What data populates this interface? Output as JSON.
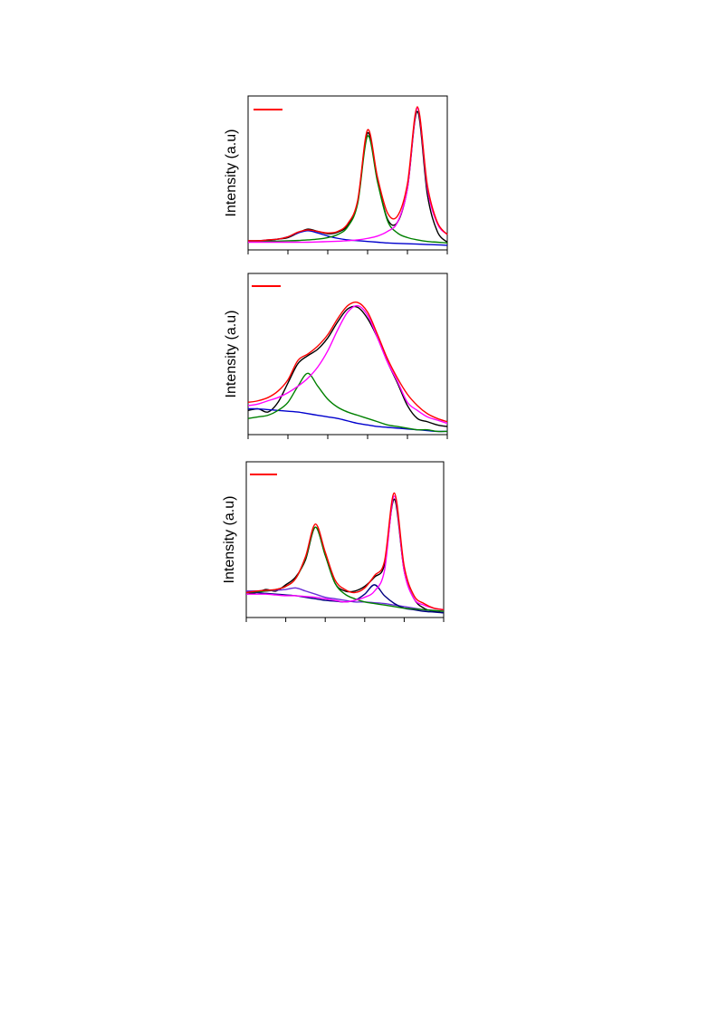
{
  "chart_data": [
    {
      "type": "line",
      "ylabel": "Intensity (a.u)",
      "xlim": [
        0,
        100
      ],
      "ylim": [
        0,
        100
      ],
      "xticks": [
        0,
        20,
        40,
        60,
        80,
        100
      ],
      "x": [
        0,
        5,
        10,
        15,
        20,
        25,
        30,
        35,
        40,
        45,
        50,
        55,
        60,
        65,
        70,
        75,
        80,
        85,
        90,
        95,
        100
      ],
      "series": [
        {
          "color": "#000000",
          "values": [
            5,
            6,
            6,
            7,
            8,
            11,
            13.5,
            12,
            10.5,
            11.5,
            16,
            31,
            76,
            45,
            20,
            18,
            40,
            90,
            36,
            12,
            5
          ]
        },
        {
          "color": "#0000cd",
          "values": [
            6,
            6,
            6.5,
            7,
            8.5,
            11,
            12.5,
            11,
            9,
            7.5,
            6.5,
            6,
            5.5,
            5,
            4.5,
            4.2,
            4,
            3.8,
            3.5,
            3.3,
            3
          ]
        },
        {
          "color": "#008000",
          "values": [
            5.5,
            5.5,
            5.6,
            5.7,
            5.9,
            6.1,
            6.5,
            7,
            8,
            10,
            15,
            30,
            74,
            44,
            19,
            11,
            8,
            6.5,
            5.5,
            5,
            4.5
          ]
        },
        {
          "color": "#ff00ff",
          "values": [
            5,
            5,
            5,
            5,
            5,
            5,
            5,
            5.2,
            5.4,
            5.6,
            6,
            6.5,
            7.5,
            9,
            12,
            18,
            40,
            92,
            40,
            17,
            10
          ]
        },
        {
          "color": "#ff0000",
          "values": [
            6,
            6,
            6.5,
            7,
            8.5,
            11.5,
            13,
            12,
            11,
            12,
            17,
            32,
            78,
            47,
            24,
            22,
            43,
            93,
            42,
            18,
            10
          ]
        }
      ]
    },
    {
      "type": "line",
      "ylabel": "Intensity (a.u)",
      "xlim": [
        0,
        100
      ],
      "ylim": [
        0,
        100
      ],
      "xticks": [
        0,
        20,
        40,
        60,
        80,
        100
      ],
      "x": [
        0,
        5,
        10,
        15,
        20,
        25,
        30,
        35,
        40,
        45,
        50,
        55,
        60,
        65,
        70,
        75,
        80,
        85,
        90,
        95,
        100
      ],
      "series": [
        {
          "color": "#000000",
          "values": [
            15,
            16,
            14,
            20,
            32,
            44,
            49,
            53,
            60,
            70,
            78,
            79,
            72,
            60,
            45,
            32,
            18,
            10,
            8,
            6,
            5
          ]
        },
        {
          "color": "#0000cd",
          "values": [
            16,
            16,
            15.5,
            15,
            14.5,
            14,
            13,
            12,
            11,
            10,
            8.5,
            7,
            6,
            5,
            4.5,
            4,
            3.5,
            3,
            2.5,
            2,
            2
          ]
        },
        {
          "color": "#008000",
          "values": [
            10,
            11,
            12,
            15,
            20,
            30,
            38,
            30,
            22,
            17,
            14,
            12,
            10,
            8,
            6,
            5,
            4,
            3,
            3,
            2,
            2
          ]
        },
        {
          "color": "#ff00ff",
          "values": [
            18,
            19,
            21,
            23,
            26,
            30,
            35,
            42,
            52,
            65,
            76,
            80,
            74,
            60,
            45,
            33,
            20,
            15,
            11,
            9,
            7
          ]
        },
        {
          "color": "#ff0000",
          "values": [
            20,
            21,
            23,
            27,
            34,
            46,
            50,
            55,
            62,
            72,
            80,
            82,
            76,
            62,
            47,
            35,
            25,
            18,
            13,
            10,
            8
          ]
        }
      ]
    },
    {
      "type": "line",
      "ylabel": "Intensity (a.u)",
      "xlim": [
        0,
        100
      ],
      "ylim": [
        0,
        100
      ],
      "xticks": [
        0,
        20,
        40,
        60,
        80,
        100
      ],
      "x": [
        0,
        5,
        10,
        15,
        20,
        25,
        30,
        35,
        40,
        45,
        50,
        55,
        60,
        65,
        70,
        75,
        80,
        85,
        90,
        95,
        100
      ],
      "series": [
        {
          "color": "#000000",
          "values": [
            15,
            16,
            18,
            17,
            21,
            26,
            37,
            58,
            40,
            22,
            17,
            17,
            20,
            26,
            34,
            76,
            30,
            12,
            6,
            4,
            3
          ]
        },
        {
          "color": "#6a2cd8",
          "values": [
            17,
            17,
            17,
            17.5,
            18,
            19,
            17,
            15,
            13,
            12,
            11,
            10,
            10,
            9.5,
            9,
            8,
            7,
            6,
            5,
            4.5,
            4
          ]
        },
        {
          "color": "#000080",
          "values": [
            16,
            16,
            15.5,
            15,
            14.5,
            14,
            13,
            12,
            11,
            10.5,
            10,
            11,
            15,
            21,
            14,
            9,
            6,
            5,
            4,
            3.5,
            3
          ]
        },
        {
          "color": "#008000",
          "values": [
            16,
            16.5,
            17,
            18,
            20,
            25,
            38,
            58,
            40,
            22,
            15,
            12,
            10,
            9,
            8,
            7,
            6,
            5.5,
            5,
            4.5,
            4
          ]
        },
        {
          "color": "#ff00ff",
          "values": [
            15,
            15,
            15,
            14.5,
            14,
            14,
            13.5,
            13,
            12,
            11,
            10,
            11,
            13,
            17,
            30,
            78,
            30,
            12,
            8,
            6,
            5
          ]
        },
        {
          "color": "#ff0000",
          "values": [
            16,
            17,
            17.5,
            18,
            20,
            25,
            39,
            60,
            42,
            24,
            18,
            16,
            19,
            27,
            36,
            80,
            33,
            14,
            9,
            6,
            5
          ]
        }
      ]
    }
  ]
}
